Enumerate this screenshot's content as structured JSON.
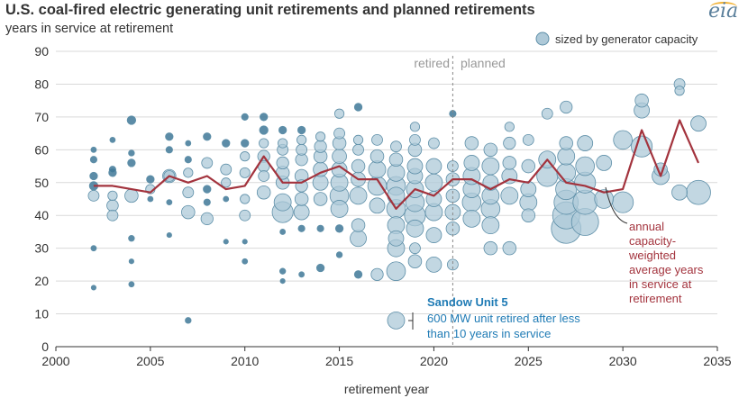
{
  "header": {
    "title": "U.S. coal-fired electric generating unit retirements and planned retirements",
    "subtitle": "years in service at retirement",
    "logo": "eia"
  },
  "legend": {
    "label": "sized by generator capacity"
  },
  "annotations": {
    "retired": "retired",
    "planned": "planned",
    "sandow_title": "Sandow Unit 5",
    "sandow_line1": "600 MW unit retired after less",
    "sandow_line2": "than 10 years in service",
    "avg_line1": "annual",
    "avg_line2": "capacity-",
    "avg_line3": "weighted",
    "avg_line4": "average years",
    "avg_line5": "in service at",
    "avg_line6": "retirement"
  },
  "colors": {
    "bubble_fill": "#aec9d8",
    "bubble_stroke": "#5e8fa8",
    "bubble_dark": "#3f7898",
    "avg_line": "#a3333d",
    "sandow_text": "#1f7bb5",
    "grid": "#d9d9d9"
  },
  "chart_data": {
    "type": "scatter",
    "xlabel": "retirement year",
    "ylabel": "years in service at retirement",
    "xlim": [
      2000,
      2035
    ],
    "ylim": [
      0,
      90
    ],
    "x_ticks": [
      2000,
      2005,
      2010,
      2015,
      2020,
      2025,
      2030,
      2035
    ],
    "y_ticks": [
      0,
      10,
      20,
      30,
      40,
      50,
      60,
      70,
      80,
      90
    ],
    "grid": "horizontal",
    "legend_position": "top-right",
    "retired_planned_divider_x": 2021,
    "average_series": {
      "name": "annual capacity-weighted average years in service at retirement",
      "x": [
        2002,
        2003,
        2004,
        2005,
        2006,
        2007,
        2008,
        2009,
        2010,
        2011,
        2012,
        2013,
        2014,
        2015,
        2016,
        2017,
        2018,
        2019,
        2020,
        2021,
        2022,
        2023,
        2024,
        2025,
        2026,
        2027,
        2028,
        2029,
        2030,
        2031,
        2032,
        2033,
        2034
      ],
      "y": [
        49,
        49,
        48,
        47,
        52,
        50,
        52,
        48,
        49,
        58,
        50,
        50,
        53,
        55,
        51,
        51,
        42,
        48,
        46,
        51,
        51,
        48,
        51,
        50,
        57,
        50,
        49,
        47,
        48,
        66,
        52,
        69,
        56
      ]
    },
    "highlight": {
      "label": "Sandow Unit 5",
      "x": 2018,
      "y": 8,
      "capacity_mw": 600
    },
    "points": [
      [
        2002,
        46,
        40
      ],
      [
        2002,
        52,
        20
      ],
      [
        2002,
        57,
        15
      ],
      [
        2002,
        30,
        10
      ],
      [
        2002,
        18,
        8
      ],
      [
        2002,
        60,
        10
      ],
      [
        2002,
        49,
        25
      ],
      [
        2003,
        46,
        30
      ],
      [
        2003,
        43,
        45
      ],
      [
        2003,
        40,
        40
      ],
      [
        2003,
        53,
        20
      ],
      [
        2003,
        63,
        10
      ],
      [
        2003,
        54,
        15
      ],
      [
        2004,
        69,
        25
      ],
      [
        2004,
        46,
        60
      ],
      [
        2004,
        33,
        12
      ],
      [
        2004,
        26,
        8
      ],
      [
        2004,
        19,
        10
      ],
      [
        2004,
        59,
        12
      ],
      [
        2004,
        56,
        20
      ],
      [
        2005,
        48,
        30
      ],
      [
        2005,
        51,
        20
      ],
      [
        2005,
        45,
        10
      ],
      [
        2006,
        52,
        40
      ],
      [
        2006,
        64,
        20
      ],
      [
        2006,
        60,
        15
      ],
      [
        2006,
        52,
        60
      ],
      [
        2006,
        44,
        10
      ],
      [
        2006,
        34,
        8
      ],
      [
        2007,
        53,
        30
      ],
      [
        2007,
        47,
        40
      ],
      [
        2007,
        41,
        60
      ],
      [
        2007,
        8,
        12
      ],
      [
        2007,
        57,
        15
      ],
      [
        2007,
        62,
        10
      ],
      [
        2008,
        48,
        20
      ],
      [
        2008,
        39,
        50
      ],
      [
        2008,
        56,
        40
      ],
      [
        2008,
        64,
        20
      ],
      [
        2008,
        44,
        15
      ],
      [
        2009,
        50,
        30
      ],
      [
        2009,
        62,
        20
      ],
      [
        2009,
        54,
        40
      ],
      [
        2009,
        45,
        10
      ],
      [
        2009,
        32,
        8
      ],
      [
        2010,
        40,
        40
      ],
      [
        2010,
        53,
        35
      ],
      [
        2010,
        58,
        30
      ],
      [
        2010,
        62,
        20
      ],
      [
        2010,
        70,
        15
      ],
      [
        2010,
        45,
        30
      ],
      [
        2010,
        26,
        10
      ],
      [
        2010,
        32,
        8
      ],
      [
        2011,
        47,
        60
      ],
      [
        2011,
        52,
        40
      ],
      [
        2011,
        58,
        50
      ],
      [
        2011,
        62,
        30
      ],
      [
        2011,
        66,
        25
      ],
      [
        2011,
        70,
        20
      ],
      [
        2011,
        55,
        45
      ],
      [
        2012,
        41,
        150
      ],
      [
        2012,
        44,
        100
      ],
      [
        2012,
        50,
        60
      ],
      [
        2012,
        53,
        60
      ],
      [
        2012,
        56,
        50
      ],
      [
        2012,
        60,
        40
      ],
      [
        2012,
        62,
        30
      ],
      [
        2012,
        66,
        20
      ],
      [
        2012,
        23,
        12
      ],
      [
        2012,
        20,
        8
      ],
      [
        2012,
        35,
        10
      ],
      [
        2013,
        41,
        80
      ],
      [
        2013,
        45,
        60
      ],
      [
        2013,
        49,
        50
      ],
      [
        2013,
        52,
        60
      ],
      [
        2013,
        57,
        50
      ],
      [
        2013,
        60,
        40
      ],
      [
        2013,
        63,
        30
      ],
      [
        2013,
        66,
        20
      ],
      [
        2013,
        36,
        15
      ],
      [
        2013,
        22,
        10
      ],
      [
        2014,
        45,
        60
      ],
      [
        2014,
        50,
        80
      ],
      [
        2014,
        54,
        70
      ],
      [
        2014,
        58,
        60
      ],
      [
        2014,
        61,
        50
      ],
      [
        2014,
        64,
        30
      ],
      [
        2014,
        24,
        20
      ],
      [
        2014,
        36,
        15
      ],
      [
        2015,
        42,
        100
      ],
      [
        2015,
        46,
        120
      ],
      [
        2015,
        50,
        100
      ],
      [
        2015,
        54,
        80
      ],
      [
        2015,
        58,
        70
      ],
      [
        2015,
        62,
        60
      ],
      [
        2015,
        65,
        40
      ],
      [
        2015,
        71,
        30
      ],
      [
        2015,
        28,
        12
      ],
      [
        2015,
        36,
        20
      ],
      [
        2016,
        33,
        90
      ],
      [
        2016,
        37,
        60
      ],
      [
        2016,
        46,
        100
      ],
      [
        2016,
        51,
        70
      ],
      [
        2016,
        55,
        60
      ],
      [
        2016,
        60,
        40
      ],
      [
        2016,
        63,
        30
      ],
      [
        2016,
        22,
        20
      ],
      [
        2016,
        73,
        20
      ],
      [
        2017,
        22,
        50
      ],
      [
        2017,
        43,
        80
      ],
      [
        2017,
        49,
        120
      ],
      [
        2017,
        54,
        100
      ],
      [
        2017,
        58,
        60
      ],
      [
        2017,
        63,
        40
      ],
      [
        2018,
        23,
        120
      ],
      [
        2018,
        30,
        100
      ],
      [
        2018,
        33,
        80
      ],
      [
        2018,
        37,
        100
      ],
      [
        2018,
        42,
        120
      ],
      [
        2018,
        46,
        100
      ],
      [
        2018,
        49,
        120
      ],
      [
        2018,
        53,
        100
      ],
      [
        2018,
        57,
        60
      ],
      [
        2018,
        61,
        40
      ],
      [
        2018,
        8,
        100
      ],
      [
        2019,
        36,
        100
      ],
      [
        2019,
        40,
        150
      ],
      [
        2019,
        44,
        120
      ],
      [
        2019,
        48,
        100
      ],
      [
        2019,
        52,
        80
      ],
      [
        2019,
        55,
        80
      ],
      [
        2019,
        60,
        60
      ],
      [
        2019,
        63,
        40
      ],
      [
        2019,
        67,
        30
      ],
      [
        2019,
        26,
        60
      ],
      [
        2019,
        30,
        40
      ],
      [
        2020,
        25,
        80
      ],
      [
        2020,
        34,
        80
      ],
      [
        2020,
        41,
        100
      ],
      [
        2020,
        45,
        80
      ],
      [
        2020,
        50,
        100
      ],
      [
        2020,
        55,
        80
      ],
      [
        2020,
        62,
        40
      ],
      [
        2021,
        25,
        40
      ],
      [
        2021,
        36,
        60
      ],
      [
        2021,
        41,
        80
      ],
      [
        2021,
        46,
        60
      ],
      [
        2021,
        51,
        60
      ],
      [
        2021,
        55,
        40
      ],
      [
        2021,
        71,
        15
      ],
      [
        2022,
        39,
        100
      ],
      [
        2022,
        44,
        120
      ],
      [
        2022,
        48,
        100
      ],
      [
        2022,
        52,
        100
      ],
      [
        2022,
        56,
        80
      ],
      [
        2022,
        62,
        60
      ],
      [
        2023,
        30,
        60
      ],
      [
        2023,
        37,
        100
      ],
      [
        2023,
        42,
        120
      ],
      [
        2023,
        46,
        100
      ],
      [
        2023,
        50,
        80
      ],
      [
        2023,
        55,
        100
      ],
      [
        2023,
        60,
        60
      ],
      [
        2024,
        30,
        60
      ],
      [
        2024,
        46,
        100
      ],
      [
        2024,
        52,
        80
      ],
      [
        2024,
        56,
        60
      ],
      [
        2024,
        62,
        50
      ],
      [
        2024,
        67,
        30
      ],
      [
        2025,
        40,
        60
      ],
      [
        2025,
        44,
        100
      ],
      [
        2025,
        48,
        80
      ],
      [
        2025,
        55,
        60
      ],
      [
        2025,
        63,
        40
      ],
      [
        2026,
        52,
        150
      ],
      [
        2026,
        57,
        100
      ],
      [
        2026,
        71,
        40
      ],
      [
        2027,
        36,
        300
      ],
      [
        2027,
        40,
        250
      ],
      [
        2027,
        44,
        200
      ],
      [
        2027,
        48,
        150
      ],
      [
        2027,
        53,
        120
      ],
      [
        2027,
        58,
        100
      ],
      [
        2027,
        62,
        60
      ],
      [
        2027,
        73,
        50
      ],
      [
        2028,
        38,
        250
      ],
      [
        2028,
        44,
        200
      ],
      [
        2028,
        50,
        150
      ],
      [
        2028,
        55,
        120
      ],
      [
        2028,
        62,
        80
      ],
      [
        2029,
        45,
        120
      ],
      [
        2029,
        56,
        80
      ],
      [
        2030,
        44,
        150
      ],
      [
        2030,
        63,
        120
      ],
      [
        2031,
        61,
        150
      ],
      [
        2031,
        72,
        80
      ],
      [
        2031,
        75,
        60
      ],
      [
        2032,
        52,
        100
      ],
      [
        2032,
        54,
        60
      ],
      [
        2033,
        47,
        80
      ],
      [
        2033,
        80,
        40
      ],
      [
        2033,
        78,
        30
      ],
      [
        2034,
        47,
        200
      ],
      [
        2034,
        68,
        80
      ]
    ]
  }
}
